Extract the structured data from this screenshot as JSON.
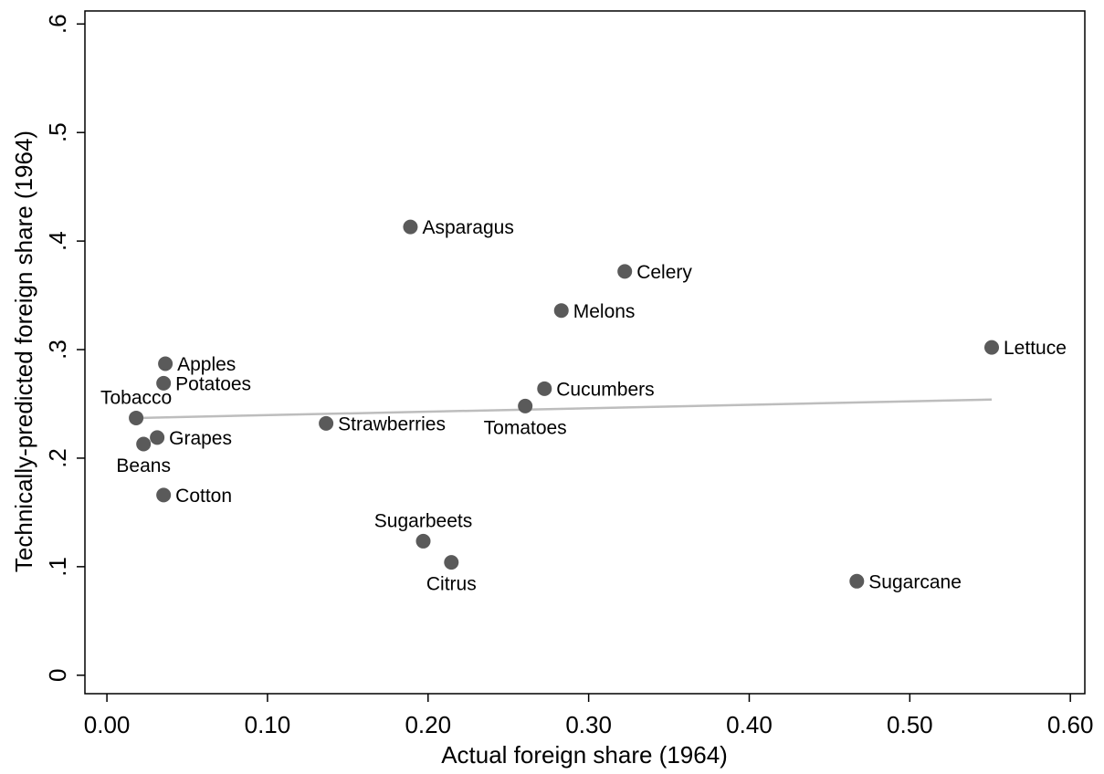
{
  "chart_data": {
    "type": "scatter",
    "xlabel": "Actual foreign share (1964)",
    "ylabel": "Technically-predicted foreign share (1964)",
    "labels": [
      "Apples",
      "Potatoes",
      "Tobacco",
      "Grapes",
      "Beans",
      "Cotton",
      "Strawberries",
      "Asparagus",
      "Cucumbers",
      "Tomatoes",
      "Celery",
      "Melons",
      "Lettuce",
      "Sugarbeets",
      "Citrus",
      "Sugarcane"
    ],
    "x": [
      0.0364,
      0.0353,
      0.0182,
      0.0313,
      0.0228,
      0.0353,
      0.1365,
      0.189,
      0.2725,
      0.2605,
      0.3225,
      0.283,
      0.551,
      0.197,
      0.2145,
      0.467
    ],
    "values": [
      0.287,
      0.269,
      0.237,
      0.219,
      0.213,
      0.166,
      0.232,
      0.413,
      0.264,
      0.248,
      0.372,
      0.336,
      0.302,
      0.1235,
      0.104,
      0.0866
    ],
    "color": "#5a5a5a",
    "fit": {
      "x": [
        0.0182,
        0.551
      ],
      "y": [
        0.237,
        0.254
      ],
      "color": "#bdbdbd"
    },
    "xlim": [
      -0.0137,
      0.609
    ],
    "ylim": [
      -0.017,
      0.612
    ],
    "xticks": [
      {
        "value": 0,
        "label": "0.00"
      },
      {
        "value": 0.1,
        "label": "0.10"
      },
      {
        "value": 0.2,
        "label": "0.20"
      },
      {
        "value": 0.3,
        "label": "0.30"
      },
      {
        "value": 0.4,
        "label": "0.40"
      },
      {
        "value": 0.5,
        "label": "0.50"
      },
      {
        "value": 0.6,
        "label": "0.60"
      }
    ],
    "yticks": [
      0,
      {
        "value": 0.1,
        "label": ".1"
      },
      {
        "value": 0.2,
        "label": ".2"
      },
      {
        "value": 0.3,
        "label": ".3"
      },
      {
        "value": 0.4,
        "label": ".4"
      },
      {
        "value": 0.5,
        "label": ".5"
      },
      {
        "value": 0.6,
        "label": ".6"
      }
    ]
  }
}
